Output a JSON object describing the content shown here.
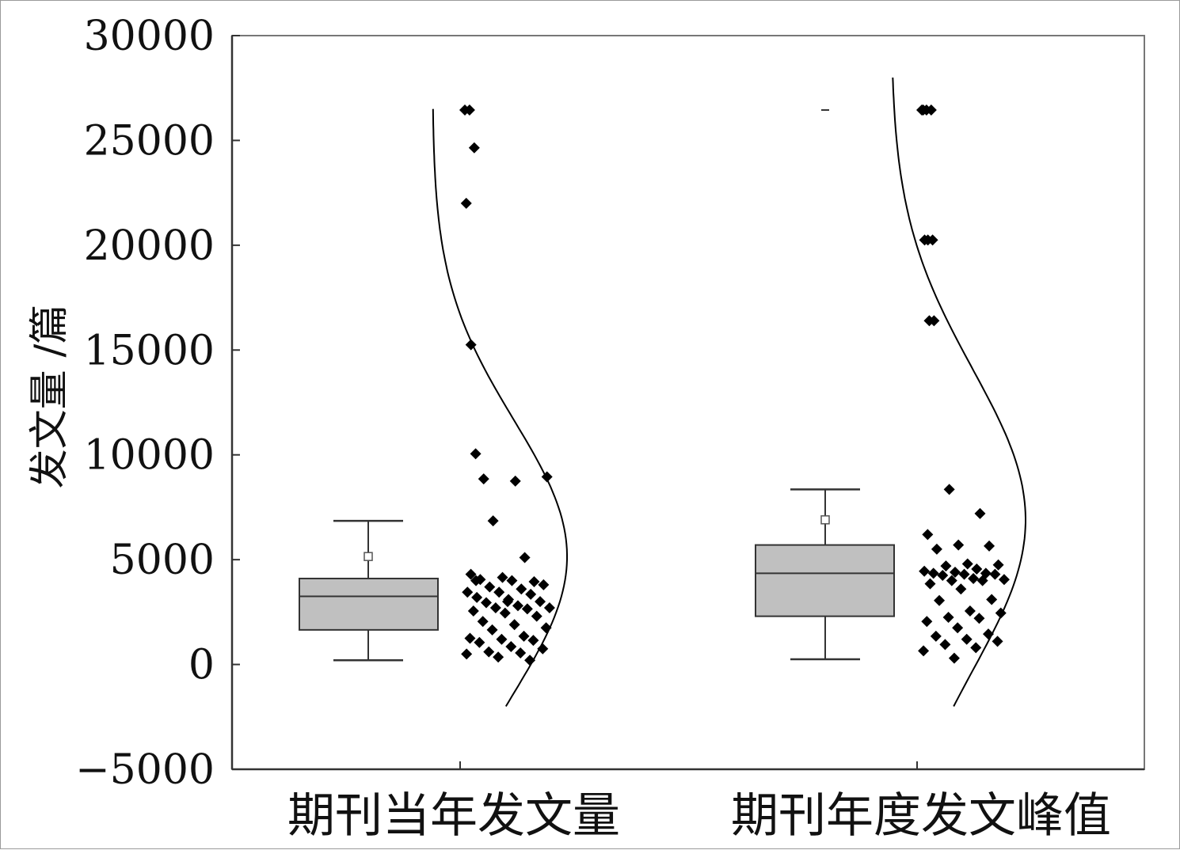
{
  "chart_data": {
    "type": "box",
    "ylabel": "发文量 /篇",
    "ylim": [
      -5000,
      30000
    ],
    "yticks": [
      -5000,
      0,
      5000,
      10000,
      15000,
      20000,
      25000,
      30000
    ],
    "ytick_labels": [
      "−5000",
      "0",
      "5000",
      "10000",
      "15000",
      "20000",
      "25000",
      "30000"
    ],
    "grid": false,
    "categories": [
      "期刊当年发文量",
      "期刊年度发文峰值"
    ],
    "colors": {
      "box_fill": "#c0c0c0",
      "box_stroke": "#333333",
      "points": "#000000",
      "curve": "#000000"
    },
    "boxes": [
      {
        "category": "期刊当年发文量",
        "whisker_low": 200,
        "q1": 1650,
        "median": 3250,
        "q3": 4100,
        "whisker_high": 6850,
        "mean": 5150,
        "points": [
          26450,
          26450,
          24650,
          22000,
          15250,
          10050,
          8850,
          8750,
          8950,
          6850,
          5100,
          4300,
          4150,
          3950,
          4050,
          4000,
          3800,
          3700,
          3600,
          3450,
          3450,
          3350,
          3200,
          3100,
          3000,
          2950,
          2800,
          2700,
          2700,
          2650,
          2550,
          2450,
          2300,
          2050,
          1900,
          1750,
          1650,
          1350,
          1250,
          1200,
          1150,
          1050,
          850,
          750,
          600,
          550,
          500,
          350,
          200,
          4000,
          3000
        ],
        "normal_curve": {
          "mean": 5150,
          "sd": 6500,
          "y_from": -2000,
          "y_to": 26500
        }
      },
      {
        "category": "期刊年度发文峰值",
        "whisker_low": 250,
        "q1": 2300,
        "median": 4350,
        "q3": 5700,
        "whisker_high": 8350,
        "mean": 6900,
        "outlier_max": 26450,
        "points": [
          26450,
          26450,
          26450,
          26450,
          20250,
          20250,
          20250,
          16400,
          16400,
          8350,
          7200,
          6200,
          5700,
          5650,
          5500,
          4800,
          4750,
          4700,
          4550,
          4450,
          4400,
          4350,
          4350,
          4300,
          4300,
          4250,
          4100,
          4050,
          4000,
          4000,
          3850,
          3600,
          3100,
          3050,
          2550,
          2450,
          2250,
          2200,
          2050,
          1750,
          1450,
          1350,
          1200,
          1100,
          950,
          800,
          650,
          300
        ],
        "normal_curve": {
          "mean": 6900,
          "sd": 7200,
          "y_from": -2000,
          "y_to": 28000
        }
      }
    ]
  }
}
